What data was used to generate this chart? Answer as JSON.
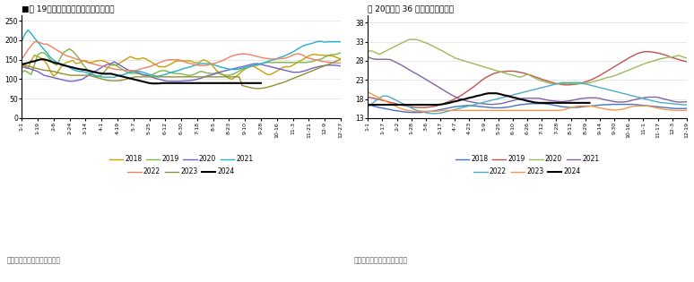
{
  "chart1": {
    "title": "■图 19：寿光蚂菜价格指数（总指数）",
    "ylim": [
      0,
      265
    ],
    "yticks": [
      0,
      50,
      100,
      150,
      200,
      250
    ],
    "xticks": [
      "1-1",
      "1-19",
      "2-6",
      "2-24",
      "3-14",
      "4-1",
      "4-19",
      "5-7",
      "5-25",
      "6-12",
      "6-30",
      "7-18",
      "8-5",
      "8-23",
      "9-10",
      "9-28",
      "10-16",
      "11-3",
      "11-21",
      "12-9",
      "12-27"
    ],
    "legend_items": [
      "2018",
      "2019",
      "2020",
      "2021",
      "2022",
      "2023",
      "2024"
    ],
    "legend_colors": [
      "#C8A000",
      "#7AB648",
      "#7060C8",
      "#20B2CC",
      "#F08060",
      "#909030",
      "#000000"
    ],
    "series": {
      "2018": [
        138,
        133,
        128,
        148,
        162,
        158,
        155,
        148,
        138,
        120,
        108,
        115,
        128,
        138,
        143,
        145,
        148,
        140,
        142,
        146,
        148,
        143,
        143,
        146,
        148,
        148,
        146,
        142,
        137,
        136,
        137,
        143,
        148,
        153,
        158,
        155,
        152,
        152,
        155,
        152,
        147,
        142,
        138,
        132,
        132,
        132,
        136,
        140,
        145,
        147,
        147,
        147,
        147,
        147,
        143,
        142,
        145,
        150,
        147,
        142,
        133,
        123,
        117,
        112,
        107,
        102,
        100,
        106,
        112,
        120,
        126,
        130,
        135,
        132,
        127,
        122,
        117,
        112,
        112,
        116,
        121,
        126,
        131,
        132,
        132,
        136,
        141,
        146,
        150,
        155,
        160,
        163,
        164,
        162,
        162,
        161,
        161,
        160,
        158,
        155,
        152
      ],
      "2019": [
        118,
        122,
        117,
        112,
        138,
        163,
        168,
        168,
        160,
        150,
        140,
        136,
        152,
        168,
        173,
        178,
        172,
        163,
        153,
        140,
        130,
        120,
        112,
        108,
        106,
        110,
        120,
        130,
        138,
        138,
        133,
        128,
        123,
        118,
        115,
        115,
        115,
        114,
        110,
        110,
        110,
        112,
        116,
        120,
        122,
        122,
        119,
        116,
        115,
        114,
        114,
        112,
        110,
        110,
        112,
        116,
        120,
        119,
        116,
        115,
        114,
        117,
        114,
        112,
        110,
        110,
        112,
        116,
        120,
        125,
        128,
        130,
        133,
        135,
        136,
        140,
        142,
        143,
        143,
        143,
        143,
        143,
        143,
        143,
        143,
        143,
        143,
        143,
        143,
        143,
        144,
        145,
        148,
        150,
        152,
        157,
        160,
        163,
        163,
        165,
        168
      ],
      "2020": [
        132,
        130,
        128,
        126,
        123,
        120,
        115,
        110,
        108,
        106,
        104,
        102,
        100,
        98,
        96,
        95,
        95,
        96,
        98,
        100,
        105,
        110,
        115,
        120,
        125,
        130,
        135,
        138,
        140,
        145,
        140,
        135,
        130,
        125,
        122,
        120,
        118,
        115,
        112,
        110,
        108,
        105,
        102,
        100,
        98,
        96,
        95,
        95,
        95,
        95,
        95,
        96,
        96,
        97,
        98,
        100,
        102,
        105,
        108,
        110,
        112,
        115,
        118,
        120,
        122,
        124,
        126,
        128,
        130,
        132,
        134,
        136,
        138,
        140,
        140,
        138,
        136,
        134,
        132,
        130,
        128,
        126,
        124,
        122,
        120,
        118,
        118,
        118,
        120,
        122,
        125,
        128,
        130,
        132,
        134,
        135,
        136,
        136,
        136,
        135,
        134
      ],
      "2021": [
        197,
        216,
        226,
        217,
        206,
        196,
        186,
        176,
        167,
        156,
        149,
        143,
        140,
        138,
        135,
        130,
        125,
        122,
        120,
        120,
        118,
        115,
        112,
        110,
        108,
        106,
        105,
        105,
        105,
        105,
        108,
        110,
        112,
        115,
        118,
        120,
        120,
        120,
        118,
        115,
        112,
        110,
        108,
        108,
        110,
        112,
        115,
        118,
        120,
        122,
        125,
        128,
        130,
        132,
        135,
        138,
        140,
        140,
        140,
        140,
        138,
        135,
        132,
        130,
        128,
        126,
        125,
        125,
        126,
        128,
        130,
        132,
        134,
        136,
        138,
        140,
        142,
        145,
        148,
        150,
        153,
        156,
        158,
        162,
        166,
        170,
        175,
        180,
        185,
        188,
        190,
        192,
        195,
        197,
        197,
        195,
        196,
        196,
        196,
        196,
        196
      ],
      "2022": [
        152,
        163,
        176,
        186,
        196,
        196,
        193,
        190,
        190,
        185,
        180,
        175,
        170,
        165,
        160,
        158,
        155,
        152,
        150,
        148,
        145,
        142,
        140,
        138,
        136,
        134,
        132,
        130,
        128,
        126,
        125,
        124,
        123,
        122,
        122,
        122,
        123,
        125,
        128,
        130,
        132,
        135,
        138,
        142,
        145,
        148,
        150,
        150,
        150,
        150,
        148,
        145,
        142,
        140,
        138,
        136,
        135,
        135,
        136,
        138,
        140,
        142,
        145,
        148,
        152,
        156,
        160,
        162,
        164,
        165,
        165,
        164,
        162,
        160,
        158,
        156,
        154,
        153,
        152,
        152,
        152,
        153,
        153,
        155,
        158,
        162,
        165,
        165,
        162,
        158,
        154,
        152,
        150,
        148,
        146,
        145,
        144,
        143,
        142,
        142,
        142
      ],
      "2023": [
        138,
        136,
        134,
        132,
        130,
        128,
        126,
        124,
        123,
        122,
        121,
        120,
        118,
        116,
        114,
        113,
        111,
        110,
        110,
        110,
        110,
        110,
        110,
        110,
        108,
        106,
        104,
        102,
        100,
        98,
        97,
        96,
        96,
        96,
        97,
        98,
        100,
        102,
        104,
        106,
        106,
        106,
        106,
        106,
        106,
        106,
        106,
        106,
        106,
        106,
        106,
        106,
        106,
        106,
        106,
        106,
        106,
        106,
        106,
        106,
        106,
        106,
        106,
        106,
        106,
        106,
        106,
        106,
        106,
        106,
        106,
        106,
        106,
        106,
        106,
        106,
        84,
        82,
        80,
        78,
        77,
        76,
        76,
        77,
        78,
        80,
        82,
        84,
        87,
        89,
        91,
        94,
        97,
        100,
        103,
        106,
        109,
        112,
        115,
        118,
        121,
        124,
        127,
        130,
        133,
        136,
        139,
        142,
        145,
        148,
        151
      ],
      "2024": [
        138,
        140,
        142,
        145,
        146,
        149,
        151,
        151,
        149,
        146,
        143,
        141,
        139,
        136,
        134,
        132,
        130,
        128,
        126,
        125,
        124,
        122,
        120,
        118,
        116,
        115,
        114,
        114,
        114,
        112,
        110,
        108,
        106,
        104,
        102,
        100,
        98,
        96,
        94,
        92,
        90,
        89,
        89,
        89,
        90,
        90,
        90,
        90,
        90,
        90,
        90,
        90,
        90,
        90,
        90,
        90,
        90,
        90,
        90,
        90,
        90,
        90,
        90,
        90,
        90,
        90,
        90,
        90,
        90,
        90,
        90,
        90,
        90,
        90,
        90,
        90,
        null,
        null,
        null,
        null,
        null,
        null,
        null,
        null,
        null,
        null,
        null,
        null,
        null,
        null,
        null,
        null,
        null,
        null,
        null,
        null,
        null,
        null,
        null,
        null,
        null
      ]
    }
  },
  "chart2": {
    "title": "图 20：猪肉 36 个城市平均零售价",
    "ylim": [
      13,
      40
    ],
    "yticks": [
      13,
      18,
      23,
      28,
      33,
      38
    ],
    "xticks": [
      "1-1",
      "1-17",
      "2-2",
      "1-28",
      "3-6",
      "3-17",
      "4-7",
      "4-23",
      "5-9",
      "5-25",
      "6-10",
      "6-26",
      "7-12",
      "7-28",
      "8-13",
      "8-29",
      "9-14",
      "9-30",
      "10-16",
      "11-1",
      "11-17",
      "12-3",
      "12-19"
    ],
    "legend_items": [
      "2018",
      "2019",
      "2020",
      "2021",
      "2022",
      "2023",
      "2024"
    ],
    "legend_colors": [
      "#4472C4",
      "#C0504D",
      "#9BBB59",
      "#8064A2",
      "#4BACC6",
      "#F79646",
      "#000000"
    ],
    "series": {
      "2018": [
        16.5,
        16.3,
        16.0,
        15.8,
        15.6,
        15.4,
        15.2,
        15.0,
        14.9,
        14.7,
        14.6,
        14.5,
        14.5,
        14.5,
        14.5,
        14.6,
        14.7,
        14.8,
        15.0,
        15.2,
        15.4,
        15.6,
        15.8,
        16.0,
        16.1,
        16.2,
        16.3,
        16.3,
        16.2,
        16.1,
        16.0,
        15.9,
        15.8,
        15.7,
        15.7,
        15.7,
        15.8,
        15.9,
        16.1,
        16.3,
        16.5,
        16.6,
        16.7,
        16.8,
        16.8,
        16.8,
        16.8,
        16.7,
        16.6,
        16.4,
        16.2,
        16.0,
        15.9,
        15.8,
        15.8,
        15.8,
        15.9,
        16.0,
        16.1,
        16.2,
        16.3,
        16.4,
        16.5,
        16.5,
        16.6,
        16.6,
        16.6,
        16.6,
        16.6,
        16.6,
        16.6,
        16.5,
        16.4,
        16.3,
        16.2,
        16.1,
        16.0,
        15.9,
        15.8,
        15.7,
        15.6,
        15.5,
        15.5,
        15.5,
        15.5
      ],
      "2019": [
        18.5,
        18.3,
        18.1,
        17.9,
        17.6,
        17.4,
        17.1,
        16.9,
        16.6,
        16.4,
        16.2,
        16.0,
        15.9,
        15.8,
        15.8,
        15.8,
        15.9,
        16.0,
        16.2,
        16.5,
        16.8,
        17.2,
        17.6,
        18.1,
        18.6,
        19.2,
        19.9,
        20.6,
        21.3,
        22.1,
        22.9,
        23.6,
        24.1,
        24.6,
        24.9,
        25.1,
        25.2,
        25.3,
        25.3,
        25.2,
        25.0,
        24.8,
        24.5,
        24.2,
        23.8,
        23.5,
        23.1,
        22.8,
        22.5,
        22.2,
        22.0,
        21.8,
        21.7,
        21.7,
        21.8,
        21.9,
        22.1,
        22.4,
        22.7,
        23.1,
        23.6,
        24.1,
        24.7,
        25.3,
        25.9,
        26.5,
        27.1,
        27.7,
        28.3,
        28.9,
        29.4,
        29.9,
        30.2,
        30.4,
        30.4,
        30.3,
        30.1,
        29.9,
        29.6,
        29.3,
        28.9,
        28.6,
        28.3,
        28.0,
        27.8
      ],
      "2020": [
        30.5,
        30.6,
        30.2,
        29.7,
        30.2,
        30.7,
        31.2,
        31.7,
        32.2,
        32.7,
        33.2,
        33.6,
        33.6,
        33.5,
        33.2,
        32.8,
        32.4,
        31.9,
        31.4,
        30.9,
        30.4,
        29.8,
        29.3,
        28.7,
        28.4,
        28.1,
        27.8,
        27.5,
        27.2,
        26.9,
        26.6,
        26.3,
        26.0,
        25.7,
        25.4,
        25.1,
        24.8,
        24.5,
        24.3,
        24.0,
        23.7,
        24.0,
        24.5,
        24.0,
        23.5,
        23.0,
        22.7,
        22.4,
        22.1,
        22.0,
        22.0,
        22.0,
        22.0,
        22.0,
        22.0,
        22.0,
        22.0,
        22.0,
        22.2,
        22.4,
        22.7,
        23.0,
        23.3,
        23.6,
        23.8,
        24.1,
        24.5,
        24.9,
        25.3,
        25.7,
        26.1,
        26.5,
        26.9,
        27.3,
        27.6,
        27.9,
        28.2,
        28.5,
        28.7,
        28.9,
        29.0,
        29.2,
        29.4,
        29.0,
        28.7
      ],
      "2021": [
        29.0,
        28.6,
        28.4,
        28.4,
        28.4,
        28.4,
        28.3,
        27.8,
        27.3,
        26.8,
        26.2,
        25.6,
        25.0,
        24.5,
        23.9,
        23.3,
        22.7,
        22.1,
        21.5,
        20.9,
        20.3,
        19.7,
        19.1,
        18.6,
        18.1,
        17.8,
        17.5,
        17.3,
        17.1,
        16.9,
        16.8,
        16.7,
        16.6,
        16.6,
        16.7,
        16.8,
        17.0,
        17.3,
        17.5,
        17.8,
        18.0,
        18.2,
        18.2,
        18.2,
        18.2,
        18.2,
        18.0,
        17.8,
        17.6,
        17.5,
        17.4,
        17.3,
        17.4,
        17.5,
        17.7,
        17.9,
        18.1,
        18.2,
        18.3,
        18.3,
        18.3,
        18.2,
        17.9,
        17.7,
        17.5,
        17.3,
        17.2,
        17.2,
        17.3,
        17.5,
        17.8,
        18.0,
        18.2,
        18.4,
        18.5,
        18.5,
        18.5,
        18.3,
        18.0,
        17.8,
        17.5,
        17.3,
        17.2,
        17.2,
        17.3
      ],
      "2022": [
        16.0,
        16.7,
        17.5,
        18.2,
        18.8,
        18.8,
        18.4,
        17.9,
        17.4,
        16.9,
        16.4,
        15.9,
        15.4,
        15.0,
        14.8,
        14.5,
        14.3,
        14.2,
        14.2,
        14.3,
        14.5,
        14.8,
        15.0,
        15.3,
        15.5,
        15.8,
        16.0,
        16.3,
        16.5,
        16.8,
        17.0,
        17.3,
        17.5,
        17.8,
        18.0,
        18.3,
        18.5,
        18.8,
        19.0,
        19.3,
        19.5,
        19.8,
        20.0,
        20.3,
        20.5,
        20.8,
        21.0,
        21.3,
        21.5,
        21.8,
        22.0,
        22.3,
        22.3,
        22.3,
        22.3,
        22.3,
        22.3,
        22.0,
        21.8,
        21.5,
        21.3,
        21.0,
        20.8,
        20.5,
        20.3,
        20.0,
        19.8,
        19.5,
        19.3,
        19.0,
        18.8,
        18.5,
        18.3,
        18.0,
        17.8,
        17.5,
        17.3,
        17.1,
        17.0,
        16.9,
        16.8,
        16.7,
        16.6,
        16.5,
        16.5
      ],
      "2023": [
        19.8,
        19.3,
        18.8,
        18.3,
        17.8,
        17.3,
        16.8,
        16.3,
        15.8,
        15.4,
        15.1,
        14.9,
        14.8,
        14.8,
        14.8,
        14.8,
        14.8,
        14.8,
        14.8,
        14.9,
        15.0,
        15.0,
        15.0,
        15.0,
        15.0,
        15.0,
        15.0,
        15.0,
        15.0,
        15.0,
        15.0,
        15.0,
        15.0,
        15.0,
        15.0,
        15.0,
        15.0,
        15.0,
        15.0,
        15.0,
        15.0,
        15.0,
        15.0,
        15.0,
        15.0,
        15.0,
        15.0,
        15.0,
        15.0,
        15.0,
        15.0,
        15.1,
        15.3,
        15.6,
        15.9,
        16.1,
        16.2,
        16.2,
        16.2,
        16.1,
        15.9,
        15.7,
        15.5,
        15.3,
        15.2,
        15.1,
        15.2,
        15.3,
        15.6,
        15.9,
        16.1,
        16.2,
        16.2,
        16.2,
        16.1,
        15.9,
        15.7,
        15.5,
        15.3,
        15.2,
        15.1,
        15.0,
        15.0,
        15.0,
        15.0
      ],
      "2024": [
        16.5,
        16.5,
        16.5,
        16.5,
        16.5,
        16.5,
        16.5,
        16.5,
        16.5,
        16.5,
        16.5,
        16.5,
        16.5,
        16.5,
        16.5,
        16.5,
        16.5,
        16.5,
        16.5,
        16.6,
        16.8,
        17.0,
        17.3,
        17.5,
        17.8,
        18.0,
        18.3,
        18.5,
        18.8,
        19.0,
        19.3,
        19.5,
        19.5,
        19.5,
        19.3,
        19.0,
        18.8,
        18.5,
        18.3,
        18.0,
        17.8,
        17.5,
        17.3,
        17.1,
        17.0,
        17.0,
        17.0,
        17.0,
        17.0,
        17.0,
        17.0,
        17.0,
        17.0,
        17.0,
        17.0,
        17.0,
        17.0,
        17.0,
        null,
        null,
        null,
        null,
        null,
        null,
        null,
        null,
        null,
        null,
        null,
        null,
        null,
        null,
        null,
        null,
        null,
        null,
        null,
        null,
        null,
        null,
        null,
        null,
        null
      ]
    }
  },
  "source_text": "数据来源：银河期货，同花顺"
}
